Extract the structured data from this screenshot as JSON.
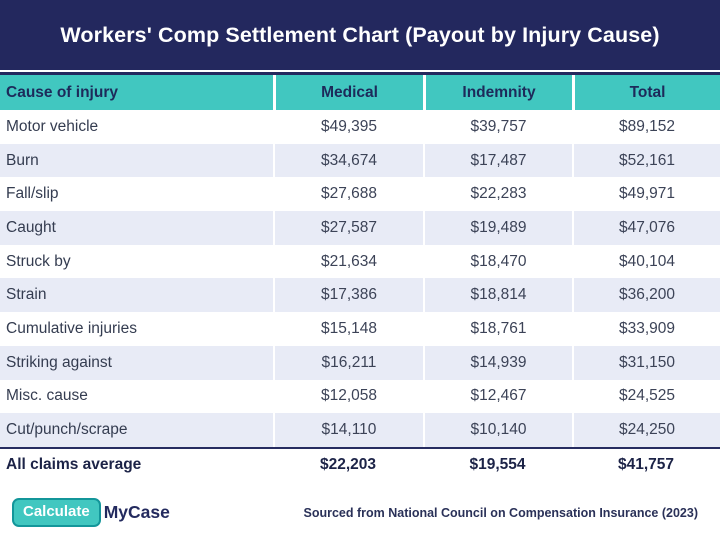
{
  "title": "Workers' Comp Settlement Chart (Payout by Injury Cause)",
  "table": {
    "headers": [
      "Cause of injury",
      "Medical",
      "Indemnity",
      "Total"
    ],
    "rows": [
      {
        "cause": "Motor vehicle",
        "medical": "$49,395",
        "indemnity": "$39,757",
        "total": "$89,152"
      },
      {
        "cause": "Burn",
        "medical": "$34,674",
        "indemnity": "$17,487",
        "total": "$52,161"
      },
      {
        "cause": "Fall/slip",
        "medical": "$27,688",
        "indemnity": "$22,283",
        "total": "$49,971"
      },
      {
        "cause": "Caught",
        "medical": "$27,587",
        "indemnity": "$19,489",
        "total": "$47,076"
      },
      {
        "cause": "Struck by",
        "medical": "$21,634",
        "indemnity": "$18,470",
        "total": "$40,104"
      },
      {
        "cause": "Strain",
        "medical": "$17,386",
        "indemnity": "$18,814",
        "total": "$36,200"
      },
      {
        "cause": "Cumulative injuries",
        "medical": "$15,148",
        "indemnity": "$18,761",
        "total": "$33,909"
      },
      {
        "cause": "Striking against",
        "medical": "$16,211",
        "indemnity": "$14,939",
        "total": "$31,150"
      },
      {
        "cause": "Misc. cause",
        "medical": "$12,058",
        "indemnity": "$12,467",
        "total": "$24,525"
      },
      {
        "cause": "Cut/punch/scrape",
        "medical": "$14,110",
        "indemnity": "$10,140",
        "total": "$24,250"
      }
    ],
    "summary_row": {
      "cause": "All claims average",
      "medical": "$22,203",
      "indemnity": "$19,554",
      "total": "$41,757"
    }
  },
  "footer": {
    "logo_primary": "Calculate",
    "logo_secondary": "MyCase",
    "source": "Sourced from National Council on Compensation Insurance (2023)"
  },
  "colors": {
    "navy": "#23285e",
    "teal": "#41c7c0",
    "row_stripe": "#e8ebf6",
    "body_text": "#3c4357",
    "header_text": "#1d2a5a",
    "badge_border": "#13969a"
  },
  "chart_data": {
    "type": "table",
    "title": "Workers' Comp Settlement Chart (Payout by Injury Cause)",
    "columns": [
      "Cause of injury",
      "Medical",
      "Indemnity",
      "Total"
    ],
    "rows": [
      [
        "Motor vehicle",
        49395,
        39757,
        89152
      ],
      [
        "Burn",
        34674,
        17487,
        52161
      ],
      [
        "Fall/slip",
        27688,
        22283,
        49971
      ],
      [
        "Caught",
        27587,
        19489,
        47076
      ],
      [
        "Struck by",
        21634,
        18470,
        40104
      ],
      [
        "Strain",
        17386,
        18814,
        36200
      ],
      [
        "Cumulative injuries",
        15148,
        18761,
        33909
      ],
      [
        "Striking against",
        16211,
        14939,
        31150
      ],
      [
        "Misc. cause",
        12058,
        12467,
        24525
      ],
      [
        "Cut/punch/scrape",
        14110,
        10140,
        24250
      ],
      [
        "All claims average",
        22203,
        19554,
        41757
      ]
    ],
    "source": "Sourced from National Council on Compensation Insurance (2023)"
  }
}
